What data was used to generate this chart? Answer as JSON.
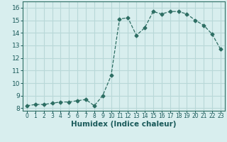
{
  "x": [
    0,
    1,
    2,
    3,
    4,
    5,
    6,
    7,
    8,
    9,
    10,
    11,
    12,
    13,
    14,
    15,
    16,
    17,
    18,
    19,
    20,
    21,
    22,
    23
  ],
  "y": [
    8.2,
    8.3,
    8.3,
    8.4,
    8.5,
    8.5,
    8.6,
    8.7,
    8.2,
    9.0,
    10.6,
    15.1,
    15.2,
    13.8,
    14.4,
    15.7,
    15.5,
    15.7,
    15.7,
    15.5,
    15.0,
    14.6,
    13.9,
    12.7
  ],
  "line_color": "#2d6e63",
  "marker": "D",
  "marker_size": 2.5,
  "bg_color": "#d8eeee",
  "grid_color": "#b8d8d8",
  "xlabel": "Humidex (Indice chaleur)",
  "xlim": [
    -0.5,
    23.5
  ],
  "ylim": [
    7.8,
    16.5
  ],
  "yticks": [
    8,
    9,
    10,
    11,
    12,
    13,
    14,
    15,
    16
  ],
  "xtick_labels": [
    "0",
    "1",
    "2",
    "3",
    "4",
    "5",
    "6",
    "7",
    "8",
    "9",
    "10",
    "11",
    "12",
    "13",
    "14",
    "15",
    "16",
    "17",
    "18",
    "19",
    "20",
    "21",
    "22",
    "23"
  ],
  "xlabel_color": "#1a5a5a",
  "tick_color": "#1a5a5a",
  "spine_color": "#2d6e63"
}
